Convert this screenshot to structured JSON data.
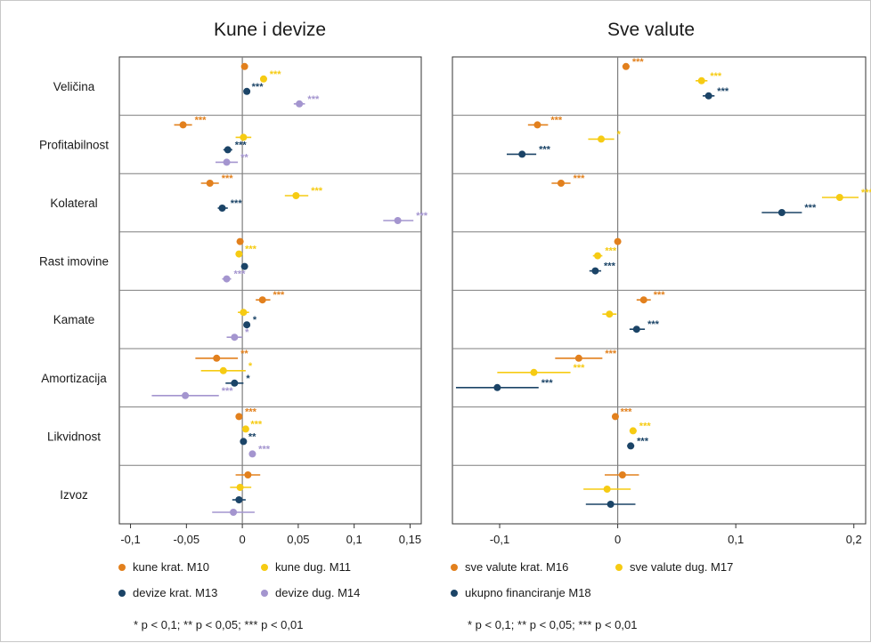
{
  "colors": {
    "m10": "#E2801D",
    "m11": "#F6CB13",
    "m13": "#1B4467",
    "m14": "#A495CF",
    "m16": "#E2801D",
    "m17": "#F6CB13",
    "m18": "#1B4467"
  },
  "categories": [
    "Veličina",
    "Profitabilnost",
    "Kolateral",
    "Rast imovine",
    "Kamate",
    "Amortizacija",
    "Likvidnost",
    "Izvoz"
  ],
  "chart_data": [
    {
      "type": "scatter",
      "title": "Kune i devize",
      "xlim": [
        -0.11,
        0.16
      ],
      "xticks": [
        {
          "v": -0.1,
          "label": "-0,1"
        },
        {
          "v": -0.05,
          "label": "-0,05"
        },
        {
          "v": 0,
          "label": "0"
        },
        {
          "v": 0.05,
          "label": "0,05"
        },
        {
          "v": 0.1,
          "label": "0,1"
        },
        {
          "v": 0.15,
          "label": "0,15"
        }
      ],
      "legend": [
        "kune krat. M10",
        "kune dug. M11",
        "devize krat. M13",
        "devize dug. M14"
      ],
      "note": "* p < 0,1; ** p < 0,05; *** p < 0,01",
      "series": [
        {
          "name": "kune krat. M10",
          "color_key": "m10",
          "points": [
            {
              "value": 0.002,
              "lo": 0.0,
              "hi": 0.004,
              "stars": ""
            },
            {
              "value": -0.053,
              "lo": -0.061,
              "hi": -0.045,
              "stars": "***"
            },
            {
              "value": -0.029,
              "lo": -0.037,
              "hi": -0.021,
              "stars": "***"
            },
            {
              "value": -0.002,
              "lo": -0.005,
              "hi": 0.001,
              "stars": ""
            },
            {
              "value": 0.018,
              "lo": 0.012,
              "hi": 0.025,
              "stars": "***"
            },
            {
              "value": -0.023,
              "lo": -0.042,
              "hi": -0.004,
              "stars": "**"
            },
            {
              "value": -0.003,
              "lo": -0.006,
              "hi": 0.0,
              "stars": "***"
            },
            {
              "value": 0.005,
              "lo": -0.006,
              "hi": 0.016,
              "stars": ""
            }
          ]
        },
        {
          "name": "kune dug. M11",
          "color_key": "m11",
          "points": [
            {
              "value": 0.019,
              "lo": 0.016,
              "hi": 0.022,
              "stars": "***"
            },
            {
              "value": 0.001,
              "lo": -0.006,
              "hi": 0.008,
              "stars": ""
            },
            {
              "value": 0.048,
              "lo": 0.038,
              "hi": 0.059,
              "stars": "***"
            },
            {
              "value": -0.003,
              "lo": -0.006,
              "hi": 0.0,
              "stars": "***"
            },
            {
              "value": 0.001,
              "lo": -0.004,
              "hi": 0.006,
              "stars": ""
            },
            {
              "value": -0.017,
              "lo": -0.037,
              "hi": 0.003,
              "stars": "*"
            },
            {
              "value": 0.003,
              "lo": 0.001,
              "hi": 0.005,
              "stars": "***"
            },
            {
              "value": -0.002,
              "lo": -0.011,
              "hi": 0.008,
              "stars": ""
            }
          ]
        },
        {
          "name": "devize krat. M13",
          "color_key": "m13",
          "points": [
            {
              "value": 0.004,
              "lo": 0.002,
              "hi": 0.006,
              "stars": "***"
            },
            {
              "value": -0.013,
              "lo": -0.017,
              "hi": -0.009,
              "stars": "***"
            },
            {
              "value": -0.018,
              "lo": -0.022,
              "hi": -0.013,
              "stars": "***"
            },
            {
              "value": 0.002,
              "lo": 0.0,
              "hi": 0.004,
              "stars": ""
            },
            {
              "value": 0.004,
              "lo": 0.001,
              "hi": 0.007,
              "stars": "*"
            },
            {
              "value": -0.007,
              "lo": -0.015,
              "hi": 0.001,
              "stars": "*"
            },
            {
              "value": 0.001,
              "lo": -0.001,
              "hi": 0.003,
              "stars": "**"
            },
            {
              "value": -0.003,
              "lo": -0.009,
              "hi": 0.003,
              "stars": ""
            }
          ]
        },
        {
          "name": "devize dug. M14",
          "color_key": "m14",
          "points": [
            {
              "value": 0.051,
              "lo": 0.046,
              "hi": 0.056,
              "stars": "***"
            },
            {
              "value": -0.014,
              "lo": -0.024,
              "hi": -0.004,
              "stars": "**"
            },
            {
              "value": 0.139,
              "lo": 0.126,
              "hi": 0.153,
              "stars": "***"
            },
            {
              "value": -0.014,
              "lo": -0.018,
              "hi": -0.01,
              "stars": "***"
            },
            {
              "value": -0.007,
              "lo": -0.014,
              "hi": 0.0,
              "stars": "*"
            },
            {
              "value": -0.051,
              "lo": -0.081,
              "hi": -0.021,
              "stars": "***"
            },
            {
              "value": 0.009,
              "lo": 0.006,
              "hi": 0.012,
              "stars": "***"
            },
            {
              "value": -0.008,
              "lo": -0.027,
              "hi": 0.011,
              "stars": ""
            }
          ]
        }
      ]
    },
    {
      "type": "scatter",
      "title": "Sve valute",
      "xlim": [
        -0.14,
        0.21
      ],
      "xticks": [
        {
          "v": -0.1,
          "label": "-0,1"
        },
        {
          "v": 0,
          "label": "0"
        },
        {
          "v": 0.1,
          "label": "0,1"
        },
        {
          "v": 0.2,
          "label": "0,2"
        }
      ],
      "legend": [
        "sve valute krat. M16",
        "sve valute dug. M17",
        "ukupno financiranje M18"
      ],
      "note": "* p < 0,1; ** p < 0,05; *** p < 0,01",
      "series": [
        {
          "name": "sve valute krat. M16",
          "color_key": "m16",
          "points": [
            {
              "value": 0.007,
              "lo": 0.004,
              "hi": 0.01,
              "stars": "***"
            },
            {
              "value": -0.068,
              "lo": -0.076,
              "hi": -0.059,
              "stars": "***"
            },
            {
              "value": -0.048,
              "lo": -0.056,
              "hi": -0.04,
              "stars": "***"
            },
            {
              "value": 0.0,
              "lo": -0.002,
              "hi": 0.002,
              "stars": ""
            },
            {
              "value": 0.022,
              "lo": 0.016,
              "hi": 0.028,
              "stars": "***"
            },
            {
              "value": -0.033,
              "lo": -0.053,
              "hi": -0.013,
              "stars": "***"
            },
            {
              "value": -0.002,
              "lo": -0.004,
              "hi": 0.0,
              "stars": "***"
            },
            {
              "value": 0.004,
              "lo": -0.011,
              "hi": 0.018,
              "stars": ""
            }
          ]
        },
        {
          "name": "sve valute dug. M17",
          "color_key": "m17",
          "points": [
            {
              "value": 0.071,
              "lo": 0.066,
              "hi": 0.076,
              "stars": "***"
            },
            {
              "value": -0.014,
              "lo": -0.025,
              "hi": -0.003,
              "stars": "*"
            },
            {
              "value": 0.188,
              "lo": 0.173,
              "hi": 0.204,
              "stars": "***"
            },
            {
              "value": -0.017,
              "lo": -0.021,
              "hi": -0.013,
              "stars": "***"
            },
            {
              "value": -0.007,
              "lo": -0.013,
              "hi": -0.001,
              "stars": ""
            },
            {
              "value": -0.071,
              "lo": -0.102,
              "hi": -0.04,
              "stars": "***"
            },
            {
              "value": 0.013,
              "lo": 0.01,
              "hi": 0.016,
              "stars": "***"
            },
            {
              "value": -0.009,
              "lo": -0.029,
              "hi": 0.011,
              "stars": ""
            }
          ]
        },
        {
          "name": "ukupno financiranje M18",
          "color_key": "m18",
          "points": [
            {
              "value": 0.077,
              "lo": 0.072,
              "hi": 0.082,
              "stars": "***"
            },
            {
              "value": -0.081,
              "lo": -0.094,
              "hi": -0.069,
              "stars": "***"
            },
            {
              "value": 0.139,
              "lo": 0.122,
              "hi": 0.156,
              "stars": "***"
            },
            {
              "value": -0.019,
              "lo": -0.024,
              "hi": -0.014,
              "stars": "***"
            },
            {
              "value": 0.016,
              "lo": 0.01,
              "hi": 0.023,
              "stars": "***"
            },
            {
              "value": -0.102,
              "lo": -0.137,
              "hi": -0.067,
              "stars": "***"
            },
            {
              "value": 0.011,
              "lo": 0.008,
              "hi": 0.014,
              "stars": "***"
            },
            {
              "value": -0.006,
              "lo": -0.027,
              "hi": 0.015,
              "stars": ""
            }
          ]
        }
      ]
    }
  ]
}
